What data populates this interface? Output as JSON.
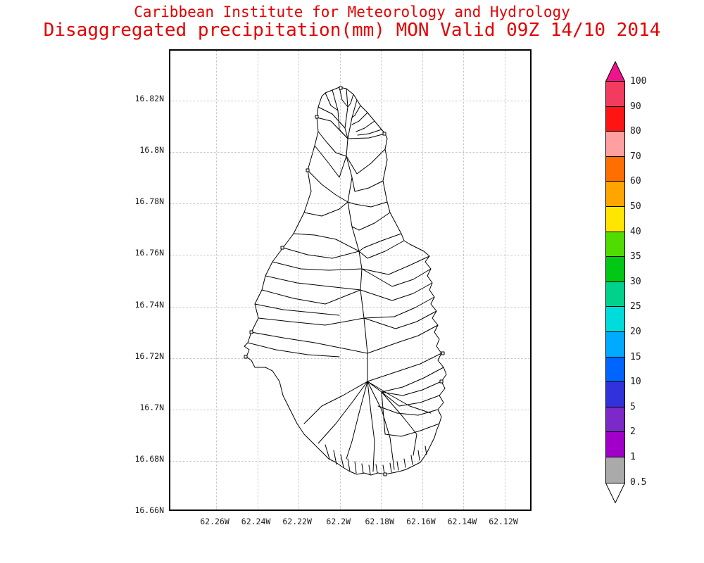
{
  "header": {
    "title_line1": "Caribbean Institute for Meteorology and Hydrology",
    "title_line2": "Disaggregated precipitation(mm) MON Valid 09Z 14/10 2014",
    "title_color": "#e30000"
  },
  "plot": {
    "y_axis_labels": [
      "16.82N",
      "16.8N",
      "16.78N",
      "16.76N",
      "16.74N",
      "16.72N",
      "16.7N",
      "16.68N",
      "16.66N"
    ],
    "x_axis_labels": [
      "62.26W",
      "62.24W",
      "62.22W",
      "62.2W",
      "62.18W",
      "62.16W",
      "62.14W",
      "62.12W"
    ]
  },
  "colorbar": {
    "labels_top_to_bottom": [
      "100",
      "90",
      "80",
      "70",
      "60",
      "50",
      "40",
      "35",
      "30",
      "25",
      "20",
      "15",
      "10",
      "5",
      "2",
      "1",
      "0.5"
    ],
    "segment_colors_top_to_bottom": [
      "#f23c5f",
      "#ff1414",
      "#ffa0a0",
      "#ff6e00",
      "#ffa500",
      "#ffe600",
      "#50dc00",
      "#00c814",
      "#00d28c",
      "#00dcdc",
      "#00aaff",
      "#0064ff",
      "#3232dc",
      "#7d28c8",
      "#a000c8",
      "#aaaaaa"
    ],
    "arrow_top_color": "#f0148c",
    "arrow_bottom_color": "#ffffff"
  }
}
